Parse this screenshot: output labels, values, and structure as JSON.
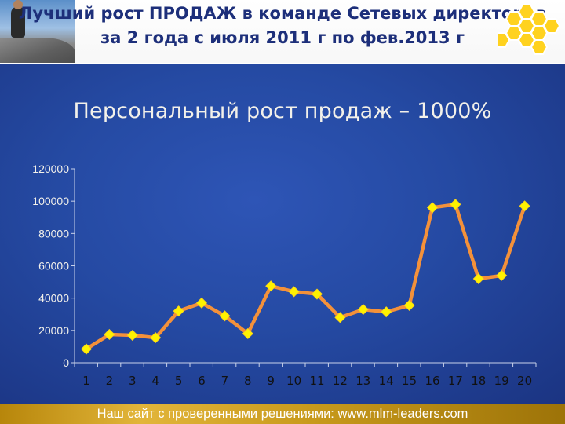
{
  "header": {
    "title_line1": "Лучший рост ПРОДАЖ в команде Сетевых директоров",
    "title_line2": "за 2 года с июля 2011 г по фев.2013 г"
  },
  "colors": {
    "background": "#254aa3",
    "line": "#f4913a",
    "marker": "#fff200",
    "title": "#1d2f7a",
    "text": "#f3f1ea",
    "footer": "#c89a1c"
  },
  "chart_data": {
    "type": "line",
    "title": "Персональный рост продаж – 1000%",
    "xlabel": "",
    "ylabel": "",
    "categories": [
      "1",
      "2",
      "3",
      "4",
      "5",
      "6",
      "7",
      "8",
      "9",
      "10",
      "11",
      "12",
      "13",
      "14",
      "15",
      "16",
      "17",
      "18",
      "19",
      "20"
    ],
    "series": [
      {
        "values": [
          8500,
          17500,
          17000,
          15500,
          32000,
          37000,
          29000,
          18000,
          47500,
          44000,
          42500,
          28000,
          33000,
          31500,
          35500,
          96000,
          98000,
          52000,
          54000,
          97000
        ]
      }
    ],
    "ylim": [
      0,
      120000
    ],
    "yticks": [
      "0",
      "20000",
      "40000",
      "60000",
      "80000",
      "100000",
      "120000"
    ],
    "grid": false,
    "legend": "none"
  },
  "footer": {
    "text": "Наш сайт с проверенными решениями: www.mlm-leaders.com"
  }
}
